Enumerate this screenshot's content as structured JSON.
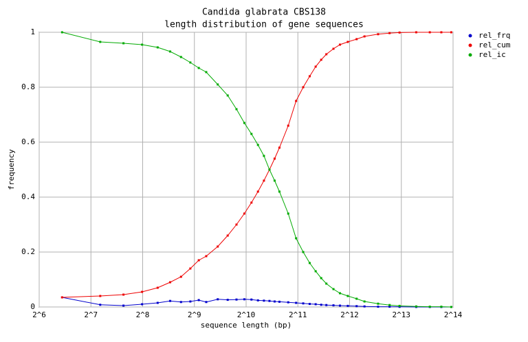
{
  "chart_data": {
    "type": "line",
    "title": "Candida glabrata CBS138",
    "subtitle": "length distribution of gene sequences",
    "x_label": "sequence length (bp)",
    "y_label": "frequency",
    "x_log_base": 2,
    "grid": true,
    "legend": "right",
    "xlim": [
      64,
      16384
    ],
    "ylim": [
      0,
      1
    ],
    "xticks": [
      {
        "value": 64,
        "label": "2^6"
      },
      {
        "value": 128,
        "label": "2^7"
      },
      {
        "value": 256,
        "label": "2^8"
      },
      {
        "value": 512,
        "label": "2^9"
      },
      {
        "value": 1024,
        "label": "2^10"
      },
      {
        "value": 2048,
        "label": "2^11"
      },
      {
        "value": 4096,
        "label": "2^12"
      },
      {
        "value": 8192,
        "label": "2^13"
      },
      {
        "value": 16384,
        "label": "2^14"
      }
    ],
    "yticks": [
      0,
      0.2,
      0.4,
      0.6,
      0.8,
      1
    ],
    "x": [
      87,
      145,
      198,
      254,
      313,
      370,
      428,
      485,
      543,
      600,
      700,
      800,
      900,
      1000,
      1100,
      1200,
      1300,
      1400,
      1500,
      1600,
      1800,
      2000,
      2200,
      2400,
      2600,
      2800,
      3000,
      3300,
      3600,
      4000,
      4500,
      5000,
      6000,
      7000,
      8000,
      10000,
      12000,
      14000,
      16000
    ],
    "series": [
      {
        "name": "rel_frq",
        "color": "#0000cc",
        "values": [
          0.035,
          0.008,
          0.005,
          0.01,
          0.015,
          0.022,
          0.018,
          0.02,
          0.025,
          0.018,
          0.028,
          0.026,
          0.027,
          0.028,
          0.027,
          0.024,
          0.023,
          0.022,
          0.02,
          0.019,
          0.017,
          0.015,
          0.013,
          0.011,
          0.01,
          0.008,
          0.007,
          0.006,
          0.005,
          0.004,
          0.003,
          0.002,
          0.001,
          0.001,
          0.0005,
          0,
          0,
          0,
          0
        ]
      },
      {
        "name": "rel_cum",
        "color": "#ee0000",
        "values": [
          0.035,
          0.04,
          0.045,
          0.055,
          0.07,
          0.09,
          0.11,
          0.14,
          0.17,
          0.185,
          0.22,
          0.26,
          0.3,
          0.34,
          0.38,
          0.42,
          0.46,
          0.5,
          0.54,
          0.58,
          0.66,
          0.75,
          0.8,
          0.84,
          0.875,
          0.9,
          0.92,
          0.94,
          0.955,
          0.965,
          0.975,
          0.985,
          0.993,
          0.997,
          0.999,
          1,
          1,
          1,
          1
        ]
      },
      {
        "name": "rel_ic",
        "color": "#00aa00",
        "values": [
          1,
          0.965,
          0.96,
          0.955,
          0.945,
          0.93,
          0.91,
          0.89,
          0.87,
          0.855,
          0.81,
          0.77,
          0.72,
          0.67,
          0.63,
          0.59,
          0.55,
          0.5,
          0.46,
          0.42,
          0.34,
          0.25,
          0.2,
          0.16,
          0.13,
          0.105,
          0.085,
          0.065,
          0.05,
          0.04,
          0.03,
          0.02,
          0.012,
          0.007,
          0.004,
          0.002,
          0.001,
          0.001,
          0
        ]
      }
    ]
  }
}
